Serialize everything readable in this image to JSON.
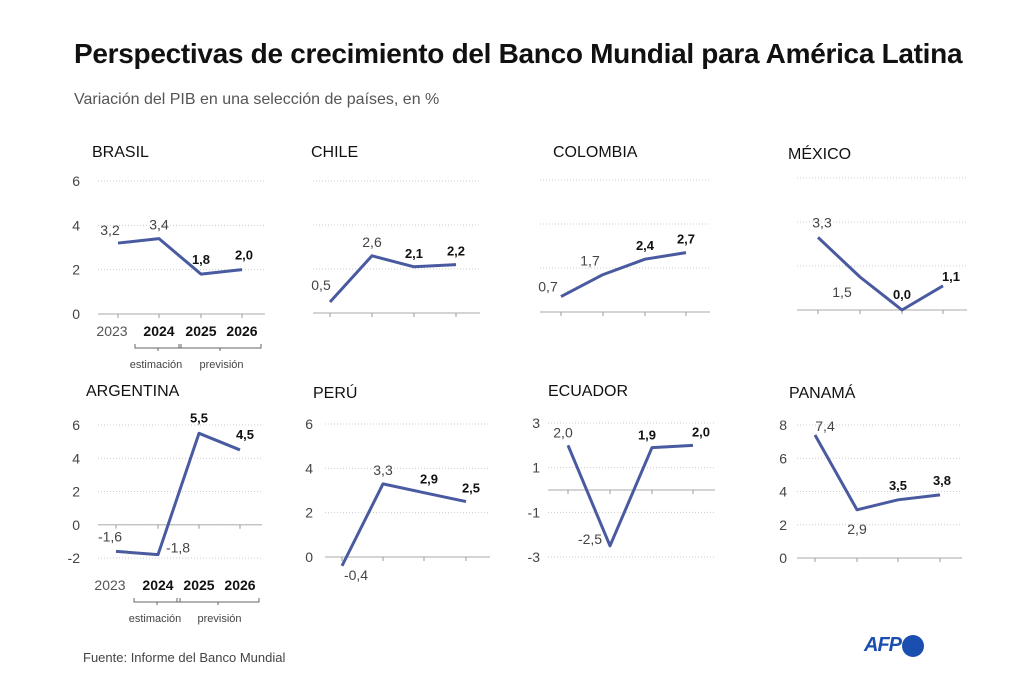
{
  "title": "Perspectivas de crecimiento del Banco Mundial para América Latina",
  "subtitle": "Variación del PIB en una selección de países, en %",
  "source": "Fuente: Informe del Banco Mundial",
  "logo": "AFP",
  "colors": {
    "line": "#4a5aa0",
    "grid": "#cccccc"
  },
  "chart_data": [
    {
      "type": "line",
      "title": "BRASIL",
      "x": [
        "2023",
        "2024",
        "2025",
        "2026"
      ],
      "values": [
        3.2,
        3.4,
        1.8,
        2.0
      ],
      "labels": [
        "3,2",
        "3,4",
        "1,8",
        "2,0"
      ],
      "ylim": [
        0,
        6
      ],
      "yticks": [
        "0",
        "2",
        "4",
        "6"
      ],
      "show_ytick_labels": true,
      "show_x_labels": true,
      "x_groups": [
        "estimación",
        "previsión"
      ]
    },
    {
      "type": "line",
      "title": "CHILE",
      "x": [
        "2023",
        "2024",
        "2025",
        "2026"
      ],
      "values": [
        0.5,
        2.6,
        2.1,
        2.2
      ],
      "labels": [
        "0,5",
        "2,6",
        "2,1",
        "2,2"
      ],
      "ylim": [
        0,
        6
      ],
      "yticks": [
        "0",
        "2",
        "4",
        "6"
      ],
      "show_ytick_labels": false
    },
    {
      "type": "line",
      "title": "COLOMBIA",
      "x": [
        "2023",
        "2024",
        "2025",
        "2026"
      ],
      "values": [
        0.7,
        1.7,
        2.4,
        2.7
      ],
      "labels": [
        "0,7",
        "1,7",
        "2,4",
        "2,7"
      ],
      "ylim": [
        0,
        6
      ],
      "yticks": [
        "0",
        "2",
        "4",
        "6"
      ],
      "show_ytick_labels": false
    },
    {
      "type": "line",
      "title": "MÉXICO",
      "x": [
        "2023",
        "2024",
        "2025",
        "2026"
      ],
      "values": [
        3.3,
        1.5,
        0.0,
        1.1
      ],
      "labels": [
        "3,3",
        "1,5",
        "0,0",
        "1,1"
      ],
      "ylim": [
        0,
        6
      ],
      "yticks": [
        "0",
        "2",
        "4",
        "6"
      ],
      "show_ytick_labels": false
    },
    {
      "type": "line",
      "title": "ARGENTINA",
      "x": [
        "2023",
        "2024",
        "2025",
        "2026"
      ],
      "values": [
        -1.6,
        -1.8,
        5.5,
        4.5
      ],
      "labels": [
        "-1,6",
        "-1,8",
        "5,5",
        "4,5"
      ],
      "ylim": [
        -2,
        6
      ],
      "yticks": [
        "-2",
        "0",
        "2",
        "4",
        "6"
      ],
      "show_ytick_labels": true,
      "show_x_labels": true,
      "x_groups": [
        "estimación",
        "previsión"
      ]
    },
    {
      "type": "line",
      "title": "PERÚ",
      "x": [
        "2023",
        "2024",
        "2025",
        "2026"
      ],
      "values": [
        -0.4,
        3.3,
        2.9,
        2.5
      ],
      "labels": [
        "-0,4",
        "3,3",
        "2,9",
        "2,5"
      ],
      "ylim": [
        0,
        6
      ],
      "yticks": [
        "0",
        "2",
        "4",
        "6"
      ],
      "show_ytick_labels": true
    },
    {
      "type": "line",
      "title": "ECUADOR",
      "x": [
        "2023",
        "2024",
        "2025",
        "2026"
      ],
      "values": [
        2.0,
        -2.5,
        1.9,
        2.0
      ],
      "labels": [
        "2,0",
        "-2,5",
        "1,9",
        "2,0"
      ],
      "ylim": [
        -3,
        3
      ],
      "yticks": [
        "-3",
        "-1",
        "1",
        "3"
      ],
      "show_ytick_labels": true
    },
    {
      "type": "line",
      "title": "PANAMÁ",
      "x": [
        "2023",
        "2024",
        "2025",
        "2026"
      ],
      "values": [
        7.4,
        2.9,
        3.5,
        3.8
      ],
      "labels": [
        "7,4",
        "2,9",
        "3,5",
        "3,8"
      ],
      "ylim": [
        0,
        8
      ],
      "yticks": [
        "0",
        "2",
        "4",
        "6",
        "8"
      ],
      "show_ytick_labels": true
    }
  ]
}
